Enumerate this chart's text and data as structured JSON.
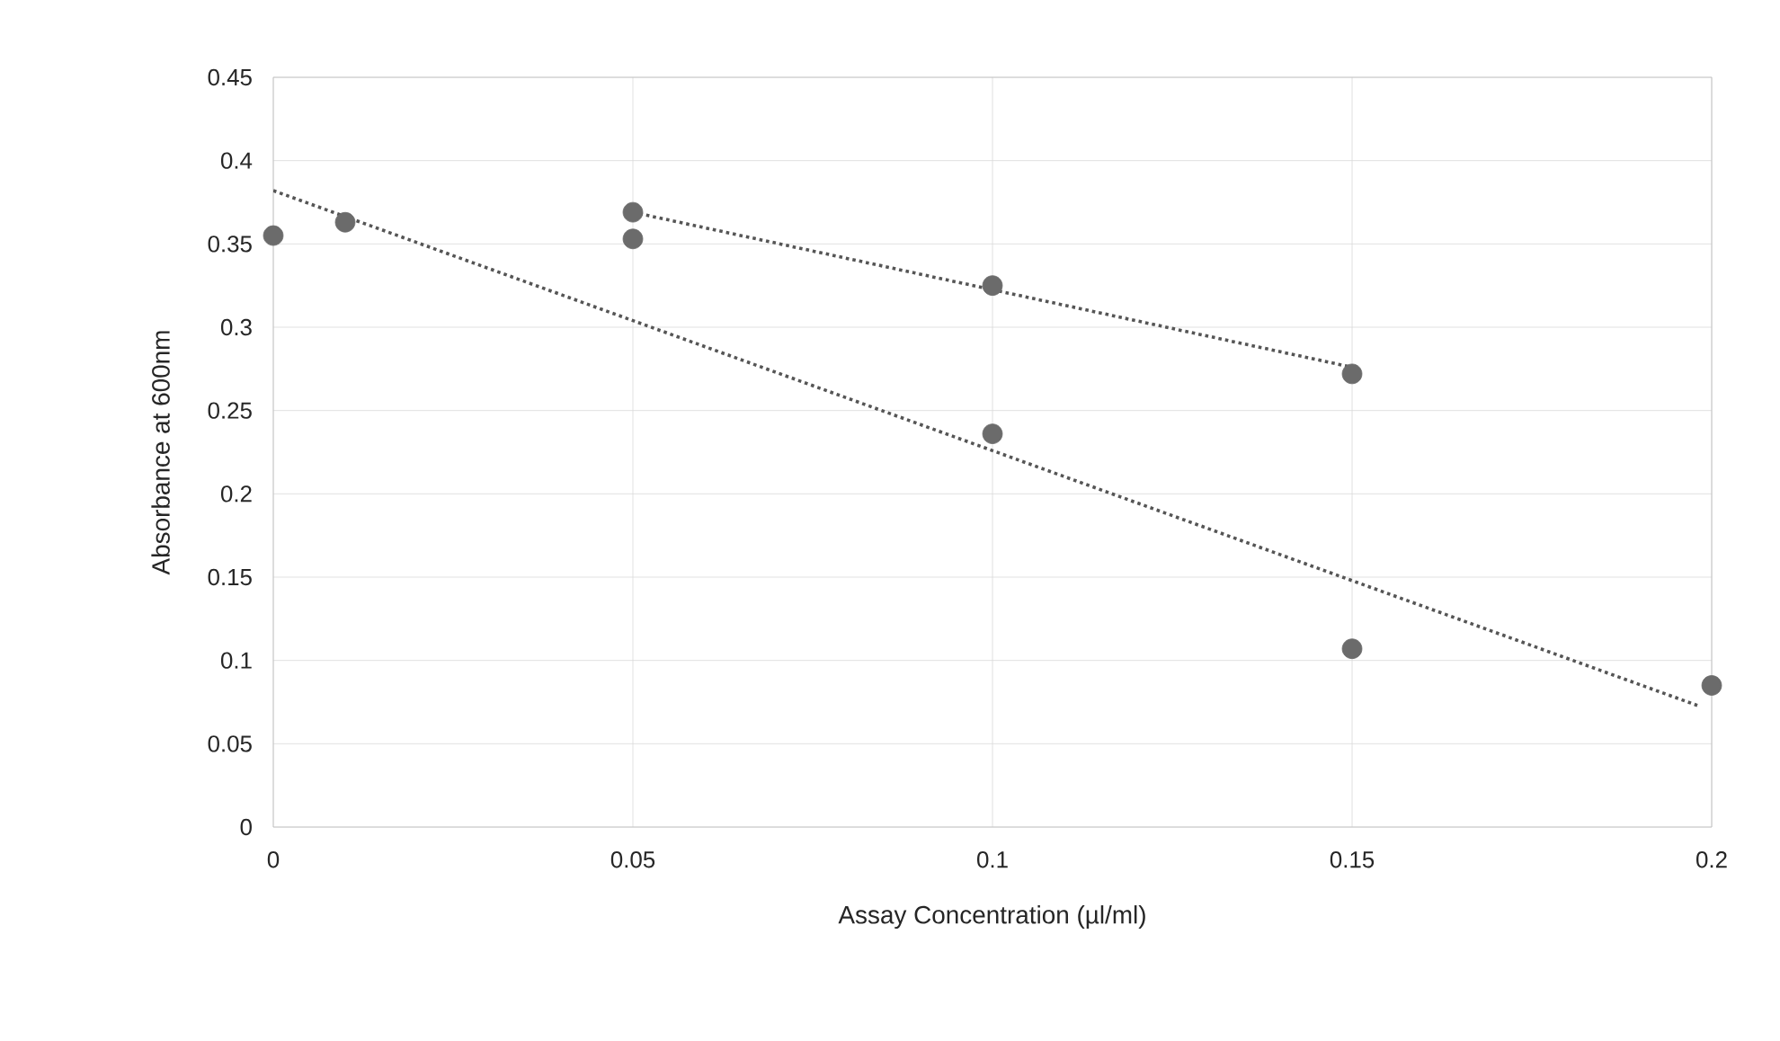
{
  "chart_data": {
    "type": "scatter",
    "xlabel": "Assay Concentration (µl/ml)",
    "ylabel": "Absorbance at 600nm",
    "xlim": [
      0,
      0.2
    ],
    "xticks": [
      0,
      0.05,
      0.1,
      0.15,
      0.2
    ],
    "ylim": [
      0,
      0.45
    ],
    "yticks": [
      0,
      0.05,
      0.1,
      0.15,
      0.2,
      0.25,
      0.3,
      0.35,
      0.4,
      0.45
    ],
    "grid": true,
    "marker": "circle",
    "series": [
      {
        "color": "#6b6b6b",
        "x": [
          0,
          0.01,
          0.05,
          0.1,
          0.15,
          0.2
        ],
        "values": [
          0.355,
          0.363,
          0.353,
          0.236,
          0.107,
          0.085
        ]
      },
      {
        "color": "#6b6b6b",
        "x": [
          0.05,
          0.1,
          0.15
        ],
        "values": [
          0.369,
          0.325,
          0.272
        ]
      },
      {
        "type": "line",
        "color": "#555555",
        "line_style": "dotted",
        "marker": "none",
        "x": [
          0,
          0.198
        ],
        "values": [
          0.382,
          0.073
        ]
      },
      {
        "type": "line",
        "color": "#555555",
        "line_style": "dotted",
        "marker": "none",
        "x": [
          0.05,
          0.15
        ],
        "values": [
          0.369,
          0.276
        ]
      }
    ]
  }
}
